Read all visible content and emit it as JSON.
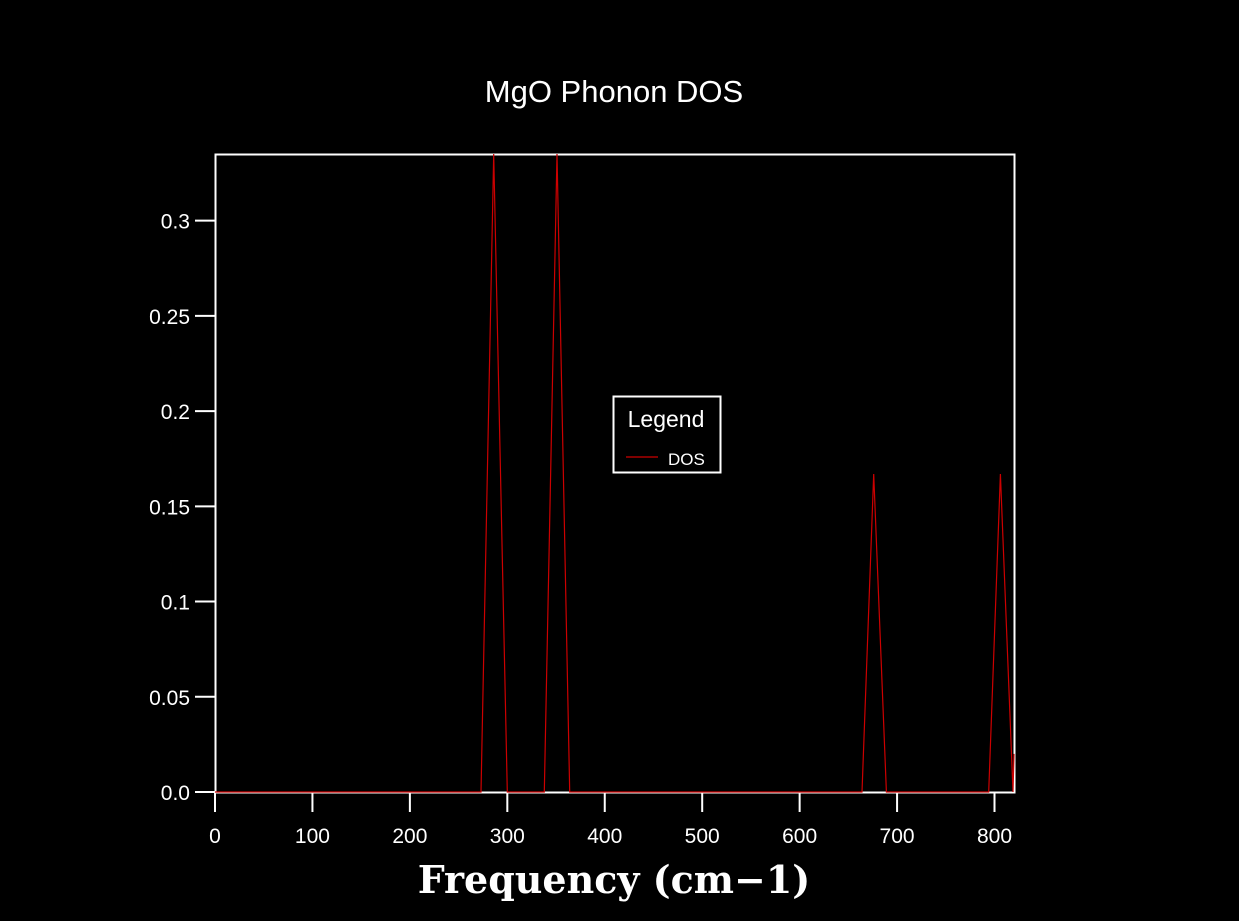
{
  "chart_data": {
    "type": "line",
    "title": "MgO Phonon DOS",
    "xlabel": "Frequency (cm−1)",
    "ylabel": "",
    "xlim": [
      0,
      820
    ],
    "ylim": [
      0,
      0.335
    ],
    "x_ticks": [
      0,
      100,
      200,
      300,
      400,
      500,
      600,
      700,
      800
    ],
    "y_ticks": [
      0.0,
      0.05,
      0.1,
      0.15,
      0.2,
      0.25,
      0.3
    ],
    "x_tick_labels": [
      "0",
      "100",
      "200",
      "300",
      "400",
      "500",
      "600",
      "700",
      "800"
    ],
    "y_tick_labels": [
      "0.0",
      "0.05",
      "0.1",
      "0.15",
      "0.2",
      "0.25",
      "0.3"
    ],
    "grid": false,
    "legend": {
      "title": "Legend",
      "placement": "center"
    },
    "series": [
      {
        "name": "DOS",
        "color": "#cc0000",
        "x": [
          0,
          273,
          286,
          300,
          338,
          351,
          364,
          664,
          676,
          689,
          794,
          806,
          819,
          820
        ],
        "y": [
          0,
          0,
          0.335,
          0,
          0,
          0.335,
          0,
          0,
          0.167,
          0,
          0,
          0.167,
          0,
          0.02
        ]
      }
    ]
  }
}
